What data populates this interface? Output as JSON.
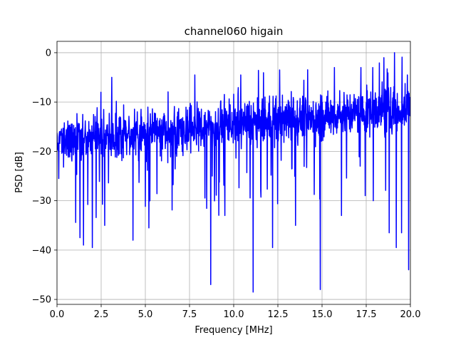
{
  "chart_data": {
    "type": "line",
    "title": "channel060 higain",
    "xlabel": "Frequency [MHz]",
    "ylabel": "PSD [dB]",
    "xlim": [
      0,
      20
    ],
    "ylim": [
      -51,
      2.3
    ],
    "xticks": [
      0.0,
      2.5,
      5.0,
      7.5,
      10.0,
      12.5,
      15.0,
      17.5,
      20.0
    ],
    "xtick_labels": [
      "0.0",
      "2.5",
      "5.0",
      "7.5",
      "10.0",
      "12.5",
      "15.0",
      "17.5",
      "20.0"
    ],
    "yticks": [
      0,
      -10,
      -20,
      -30,
      -40,
      -50
    ],
    "ytick_labels": [
      "0",
      "−10",
      "−20",
      "−30",
      "−40",
      "−50"
    ],
    "grid": true,
    "line_color": "#0000ff",
    "series": [
      {
        "trend": {
          "x": [
            0,
            5,
            10,
            15,
            20
          ],
          "y": [
            -17.5,
            -16.5,
            -14.5,
            -13.0,
            -11.0
          ]
        },
        "notable_points": [
          {
            "x": 0.1,
            "y": -25.5
          },
          {
            "x": 1.3,
            "y": -37.5
          },
          {
            "x": 1.5,
            "y": -39.0
          },
          {
            "x": 2.0,
            "y": -39.5
          },
          {
            "x": 2.7,
            "y": -35.0
          },
          {
            "x": 4.3,
            "y": -38.0
          },
          {
            "x": 5.2,
            "y": -35.5
          },
          {
            "x": 8.7,
            "y": -47.0
          },
          {
            "x": 9.5,
            "y": -33.0
          },
          {
            "x": 11.1,
            "y": -48.5
          },
          {
            "x": 12.2,
            "y": -39.5
          },
          {
            "x": 13.5,
            "y": -35.0
          },
          {
            "x": 14.9,
            "y": -48.0
          },
          {
            "x": 16.1,
            "y": -33.0
          },
          {
            "x": 17.9,
            "y": -30.0
          },
          {
            "x": 18.8,
            "y": -36.5
          },
          {
            "x": 19.2,
            "y": -39.5
          },
          {
            "x": 19.5,
            "y": -36.5
          },
          {
            "x": 19.9,
            "y": -44.0
          },
          {
            "x": 3.1,
            "y": -5.0
          },
          {
            "x": 7.8,
            "y": -4.5
          },
          {
            "x": 10.4,
            "y": -4.5
          },
          {
            "x": 12.6,
            "y": -3.5
          },
          {
            "x": 15.7,
            "y": -3.0
          },
          {
            "x": 17.2,
            "y": -3.0
          },
          {
            "x": 18.5,
            "y": -1.0
          },
          {
            "x": 19.1,
            "y": 0.0
          }
        ]
      }
    ]
  }
}
